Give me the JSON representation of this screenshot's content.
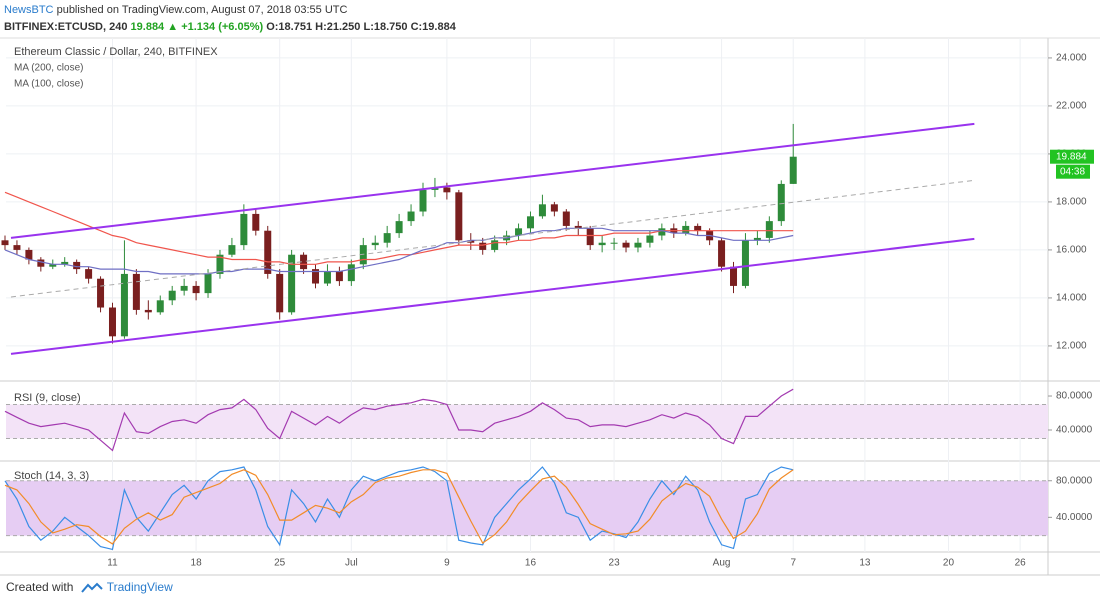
{
  "header": {
    "author": "NewsBTC",
    "published": "published on TradingView.com, August 07, 2018 03:55 UTC",
    "symbol": "BITFINEX:ETCUSD, 240",
    "last": "19.884",
    "change": "▲ +1.134 (+6.05%)",
    "open": "O:18.751",
    "high": "H:21.250",
    "low": "L:18.750",
    "close": "C:19.884"
  },
  "footer": {
    "created": "Created with",
    "brand": "TradingView"
  },
  "chart_data": [
    {
      "type": "candlestick",
      "title": "Ethereum Classic / Dollar, 240, BITFINEX",
      "grid": true,
      "xlim": [
        "2018-06-02T02:00",
        "2018-08-28T08:00"
      ],
      "xticks": [
        {
          "value": "2018-06-11",
          "label": "11"
        },
        {
          "value": "2018-06-18",
          "label": "18"
        },
        {
          "value": "2018-06-25",
          "label": "25"
        },
        {
          "value": "2018-07-01",
          "label": "Jul"
        },
        {
          "value": "2018-07-09",
          "label": "9"
        },
        {
          "value": "2018-07-16",
          "label": "16"
        },
        {
          "value": "2018-07-23",
          "label": "23"
        },
        {
          "value": "2018-08-01",
          "label": "Aug"
        },
        {
          "value": "2018-08-07",
          "label": "7"
        },
        {
          "value": "2018-08-13",
          "label": "13"
        },
        {
          "value": "2018-08-20",
          "label": "20"
        },
        {
          "value": "2018-08-26",
          "label": "26"
        }
      ],
      "ylim": [
        10.58,
        24.83
      ],
      "yticks": [
        {
          "value": 12,
          "label": "12.000"
        },
        {
          "value": 14,
          "label": "14.000"
        },
        {
          "value": 16,
          "label": "16.000"
        },
        {
          "value": 18,
          "label": "18.000"
        },
        {
          "value": 20,
          "label": "20.000"
        },
        {
          "value": 22,
          "label": "22.000"
        },
        {
          "value": 24,
          "label": "24.000"
        }
      ],
      "x": [
        "2018-06-02",
        "2018-06-03",
        "2018-06-04",
        "2018-06-05",
        "2018-06-06",
        "2018-06-07",
        "2018-06-08",
        "2018-06-09",
        "2018-06-10",
        "2018-06-11",
        "2018-06-12",
        "2018-06-13",
        "2018-06-14",
        "2018-06-15",
        "2018-06-16",
        "2018-06-17",
        "2018-06-18",
        "2018-06-19",
        "2018-06-20",
        "2018-06-21",
        "2018-06-22",
        "2018-06-23",
        "2018-06-24",
        "2018-06-25",
        "2018-06-26",
        "2018-06-27",
        "2018-06-28",
        "2018-06-29",
        "2018-06-30",
        "2018-07-01",
        "2018-07-02",
        "2018-07-03",
        "2018-07-04",
        "2018-07-05",
        "2018-07-06",
        "2018-07-07",
        "2018-07-08",
        "2018-07-09",
        "2018-07-10",
        "2018-07-11",
        "2018-07-12",
        "2018-07-13",
        "2018-07-14",
        "2018-07-15",
        "2018-07-16",
        "2018-07-17",
        "2018-07-18",
        "2018-07-19",
        "2018-07-20",
        "2018-07-21",
        "2018-07-22",
        "2018-07-23",
        "2018-07-24",
        "2018-07-25",
        "2018-07-26",
        "2018-07-27",
        "2018-07-28",
        "2018-07-29",
        "2018-07-30",
        "2018-07-31",
        "2018-08-01",
        "2018-08-02",
        "2018-08-03",
        "2018-08-04",
        "2018-08-05",
        "2018-08-06",
        "2018-08-07"
      ],
      "series": [
        {
          "up_color": "#2e8b3a",
          "down_color": "#7a1f1f",
          "open": [
            16.4,
            16.2,
            16.0,
            15.6,
            15.3,
            15.4,
            15.5,
            15.2,
            14.8,
            13.6,
            12.4,
            15.0,
            13.5,
            13.4,
            13.9,
            14.3,
            14.5,
            14.2,
            15.0,
            15.8,
            16.2,
            17.5,
            16.8,
            15.0,
            13.4,
            15.8,
            15.2,
            14.6,
            15.1,
            14.7,
            15.4,
            16.2,
            16.3,
            16.7,
            17.2,
            17.6,
            18.5,
            18.6,
            18.4,
            16.4,
            16.3,
            16.0,
            16.4,
            16.6,
            16.9,
            17.4,
            17.9,
            17.6,
            17.0,
            16.9,
            16.2,
            16.3,
            16.3,
            16.1,
            16.3,
            16.6,
            16.9,
            16.7,
            17.0,
            16.8,
            16.4,
            15.3,
            14.5,
            16.4,
            16.5,
            17.2,
            18.751
          ],
          "high": [
            16.6,
            16.4,
            16.1,
            15.7,
            15.6,
            15.7,
            15.6,
            15.3,
            14.9,
            13.8,
            16.4,
            15.2,
            13.9,
            14.1,
            14.5,
            14.8,
            14.7,
            15.2,
            16.0,
            16.5,
            17.9,
            17.7,
            17.0,
            15.2,
            16.0,
            15.9,
            15.4,
            15.4,
            15.3,
            15.6,
            16.5,
            16.6,
            17.0,
            17.5,
            17.9,
            18.8,
            19.0,
            18.8,
            18.5,
            16.7,
            16.5,
            16.6,
            16.8,
            17.1,
            17.6,
            18.3,
            18.0,
            17.7,
            17.2,
            17.0,
            16.6,
            16.5,
            16.4,
            16.5,
            16.8,
            17.1,
            17.1,
            17.2,
            17.1,
            16.9,
            16.5,
            15.5,
            16.7,
            16.8,
            17.4,
            18.9,
            21.25
          ],
          "low": [
            16.0,
            15.8,
            15.4,
            15.1,
            15.2,
            15.3,
            15.0,
            14.6,
            13.4,
            12.1,
            12.3,
            13.3,
            13.1,
            13.3,
            13.7,
            14.1,
            13.9,
            14.0,
            14.8,
            15.7,
            16.0,
            16.6,
            14.8,
            13.1,
            13.3,
            15.0,
            14.4,
            14.5,
            14.5,
            14.5,
            15.2,
            16.0,
            16.1,
            16.5,
            17.0,
            17.4,
            18.2,
            18.1,
            16.2,
            16.0,
            15.8,
            15.9,
            16.2,
            16.4,
            16.7,
            17.3,
            17.4,
            16.8,
            16.6,
            16.0,
            15.9,
            16.0,
            15.9,
            15.9,
            16.1,
            16.4,
            16.5,
            16.6,
            16.6,
            16.2,
            15.1,
            14.2,
            14.4,
            16.2,
            16.3,
            17.0,
            18.75
          ],
          "close": [
            16.2,
            16.0,
            15.6,
            15.3,
            15.4,
            15.5,
            15.2,
            14.8,
            13.6,
            12.4,
            15.0,
            13.5,
            13.4,
            13.9,
            14.3,
            14.5,
            14.2,
            15.0,
            15.8,
            16.2,
            17.5,
            16.8,
            15.0,
            13.4,
            15.8,
            15.2,
            14.6,
            15.1,
            14.7,
            15.4,
            16.2,
            16.3,
            16.7,
            17.2,
            17.6,
            18.5,
            18.6,
            18.4,
            16.4,
            16.3,
            16.0,
            16.4,
            16.6,
            16.9,
            17.4,
            17.9,
            17.6,
            17.0,
            16.9,
            16.2,
            16.3,
            16.3,
            16.1,
            16.3,
            16.6,
            16.9,
            16.7,
            17.0,
            16.8,
            16.4,
            15.3,
            14.5,
            16.4,
            16.5,
            17.2,
            18.75,
            19.884
          ]
        },
        {
          "name": "MA (200, close)",
          "color": "#f0554c",
          "values": [
            18.4,
            18.2,
            18.0,
            17.8,
            17.6,
            17.4,
            17.2,
            17.0,
            16.8,
            16.6,
            16.5,
            16.3,
            16.2,
            16.1,
            16.0,
            15.9,
            15.8,
            15.7,
            15.7,
            15.6,
            15.6,
            15.6,
            15.5,
            15.5,
            15.4,
            15.4,
            15.4,
            15.5,
            15.5,
            15.5,
            15.6,
            15.6,
            15.7,
            15.8,
            15.8,
            15.9,
            16.0,
            16.1,
            16.2,
            16.2,
            16.2,
            16.3,
            16.3,
            16.4,
            16.4,
            16.5,
            16.5,
            16.6,
            16.6,
            16.6,
            16.6,
            16.7,
            16.7,
            16.7,
            16.7,
            16.8,
            16.8,
            16.8,
            16.8,
            16.8,
            16.8,
            16.8,
            16.8,
            16.8,
            16.8,
            16.8,
            16.8
          ]
        },
        {
          "name": "MA (100, close)",
          "color": "#6f6fc4",
          "values": [
            16.0,
            15.8,
            15.6,
            15.5,
            15.4,
            15.4,
            15.3,
            15.3,
            15.2,
            15.2,
            15.2,
            15.1,
            15.1,
            15.0,
            15.0,
            15.0,
            15.0,
            15.0,
            15.1,
            15.1,
            15.2,
            15.2,
            15.2,
            15.1,
            15.1,
            15.1,
            15.1,
            15.1,
            15.1,
            15.2,
            15.3,
            15.4,
            15.5,
            15.6,
            15.8,
            16.0,
            16.1,
            16.3,
            16.3,
            16.4,
            16.4,
            16.5,
            16.5,
            16.6,
            16.7,
            16.8,
            16.8,
            16.9,
            16.9,
            16.9,
            16.9,
            16.8,
            16.8,
            16.8,
            16.8,
            16.8,
            16.7,
            16.7,
            16.6,
            16.6,
            16.5,
            16.4,
            16.4,
            16.4,
            16.4,
            16.5,
            16.6
          ]
        }
      ],
      "trendlines": [
        {
          "x": [
            "2018-06-02T12:00",
            "2018-08-22T04:00"
          ],
          "y": [
            16.5,
            21.25
          ],
          "color": "#9933ee",
          "dash": false
        },
        {
          "x": [
            "2018-06-02T12:00",
            "2018-08-22T04:00"
          ],
          "y": [
            11.67,
            16.46
          ],
          "color": "#9933ee",
          "dash": false
        },
        {
          "x": [
            "2018-06-02T12:00",
            "2018-08-22T04:00"
          ],
          "y": [
            14.04,
            18.9
          ],
          "color": "#aaaaaa",
          "dash": true
        }
      ],
      "last_price": {
        "value": 19.884,
        "label": "19.884"
      },
      "countdown": "04:38",
      "last_color": "#22c322"
    },
    {
      "type": "line",
      "title": "RSI (9, close)",
      "ylim": [
        4.7,
        96.5
      ],
      "yticks": [
        {
          "value": 40,
          "label": "40.0000"
        },
        {
          "value": 80,
          "label": "80.0000"
        }
      ],
      "band": [
        30,
        70
      ],
      "band_color": "#f3e3f7",
      "series": [
        {
          "color": "#a33ab0",
          "values": [
            62,
            55,
            48,
            44,
            46,
            48,
            44,
            40,
            28,
            16,
            60,
            38,
            36,
            44,
            50,
            52,
            48,
            58,
            64,
            66,
            76,
            64,
            42,
            30,
            62,
            54,
            46,
            56,
            48,
            58,
            66,
            64,
            68,
            70,
            72,
            76,
            74,
            70,
            40,
            40,
            38,
            48,
            52,
            56,
            62,
            72,
            64,
            54,
            52,
            44,
            46,
            46,
            44,
            48,
            52,
            58,
            54,
            60,
            56,
            46,
            30,
            24,
            56,
            56,
            68,
            80,
            88
          ]
        }
      ]
    },
    {
      "type": "line",
      "title": "Stoch (14, 3, 3)",
      "ylim": [
        3.2,
        100.5
      ],
      "yticks": [
        {
          "value": 40,
          "label": "40.0000"
        },
        {
          "value": 80,
          "label": "80.0000"
        }
      ],
      "band": [
        20,
        80
      ],
      "band_color": "#e6cdf3",
      "series": [
        {
          "color": "#3a8ee6",
          "values": [
            80,
            60,
            30,
            15,
            25,
            40,
            30,
            20,
            8,
            5,
            70,
            40,
            25,
            45,
            65,
            75,
            60,
            80,
            90,
            92,
            95,
            70,
            30,
            10,
            70,
            55,
            35,
            60,
            40,
            70,
            85,
            80,
            85,
            90,
            92,
            95,
            90,
            80,
            15,
            12,
            10,
            40,
            55,
            70,
            82,
            95,
            78,
            45,
            40,
            15,
            25,
            22,
            18,
            35,
            60,
            80,
            65,
            85,
            70,
            35,
            10,
            6,
            60,
            65,
            88,
            95,
            92
          ]
        },
        {
          "color": "#f28c28",
          "values": [
            75,
            70,
            55,
            35,
            23,
            27,
            32,
            30,
            19,
            11,
            28,
            38,
            45,
            37,
            43,
            62,
            67,
            72,
            77,
            87,
            92,
            86,
            65,
            37,
            37,
            45,
            53,
            50,
            45,
            57,
            65,
            78,
            83,
            85,
            89,
            92,
            92,
            88,
            62,
            36,
            12,
            21,
            35,
            55,
            69,
            82,
            85,
            73,
            54,
            33,
            27,
            21,
            22,
            25,
            38,
            58,
            68,
            77,
            73,
            63,
            38,
            17,
            25,
            44,
            71,
            83,
            92
          ]
        }
      ]
    }
  ]
}
